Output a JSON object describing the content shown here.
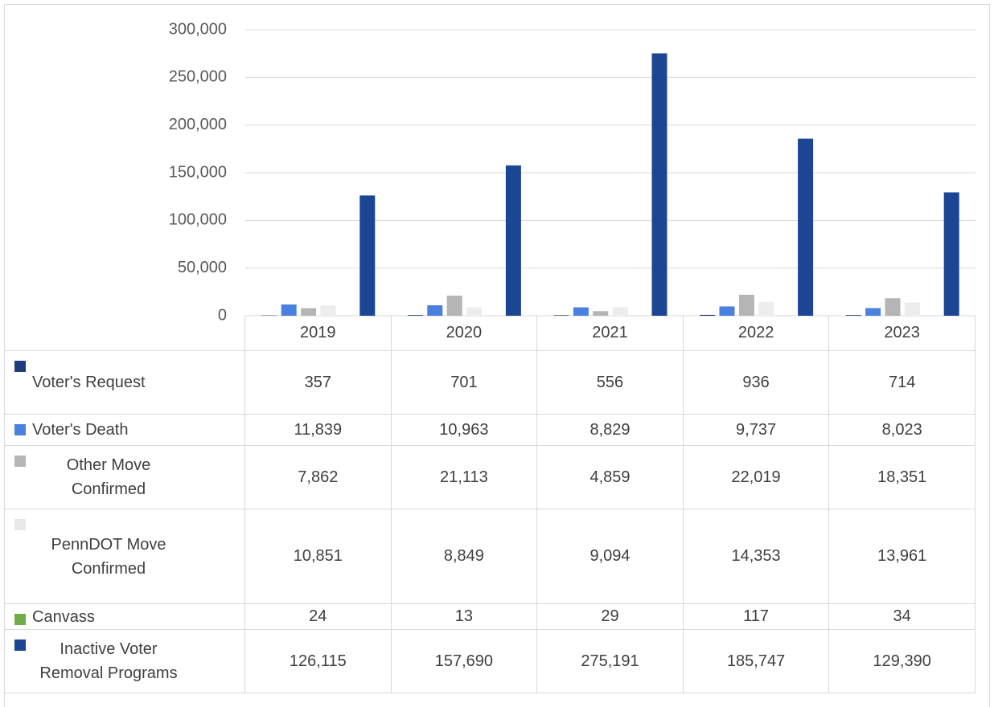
{
  "chart_data": {
    "type": "bar",
    "categories": [
      "2019",
      "2020",
      "2021",
      "2022",
      "2023"
    ],
    "series": [
      {
        "name": "Voter's Request",
        "color": "#1f3a7d",
        "values": [
          357,
          701,
          556,
          936,
          714
        ],
        "value_labels": [
          "357",
          "701",
          "556",
          "936",
          "714"
        ]
      },
      {
        "name": "Voter's Death",
        "color": "#4a80e0",
        "values": [
          11839,
          10963,
          8829,
          9737,
          8023
        ],
        "value_labels": [
          "11,839",
          "10,963",
          "8,829",
          "9,737",
          "8,023"
        ]
      },
      {
        "name": "Other Move Confirmed",
        "color": "#b5b5b5",
        "values": [
          7862,
          21113,
          4859,
          22019,
          18351
        ],
        "value_labels": [
          "7,862",
          "21,113",
          "4,859",
          "22,019",
          "18,351"
        ]
      },
      {
        "name": "PennDOT Move Confirmed",
        "color": "#ededed",
        "values": [
          10851,
          8849,
          9094,
          14353,
          13961
        ],
        "value_labels": [
          "10,851",
          "8,849",
          "9,094",
          "14,353",
          "13,961"
        ]
      },
      {
        "name": "Canvass",
        "color": "#70ad47",
        "values": [
          24,
          13,
          29,
          117,
          34
        ],
        "value_labels": [
          "24",
          "13",
          "29",
          "117",
          "34"
        ]
      },
      {
        "name": "Inactive Voter Removal Programs",
        "color": "#1c4594",
        "values": [
          126115,
          157690,
          275191,
          185747,
          129390
        ],
        "value_labels": [
          "126,115",
          "157,690",
          "275,191",
          "185,747",
          "129,390"
        ]
      }
    ],
    "ylim": [
      0,
      300000
    ],
    "yticks": [
      0,
      {
        "value": 50000,
        "label": "50,000"
      },
      {
        "value": 100000,
        "label": "100,000"
      },
      {
        "value": 150000,
        "label": "150,000"
      },
      {
        "value": 200000,
        "label": "200,000"
      },
      {
        "value": 250000,
        "label": "250,000"
      },
      {
        "value": 300000,
        "label": "300,000"
      }
    ],
    "grid": true
  }
}
